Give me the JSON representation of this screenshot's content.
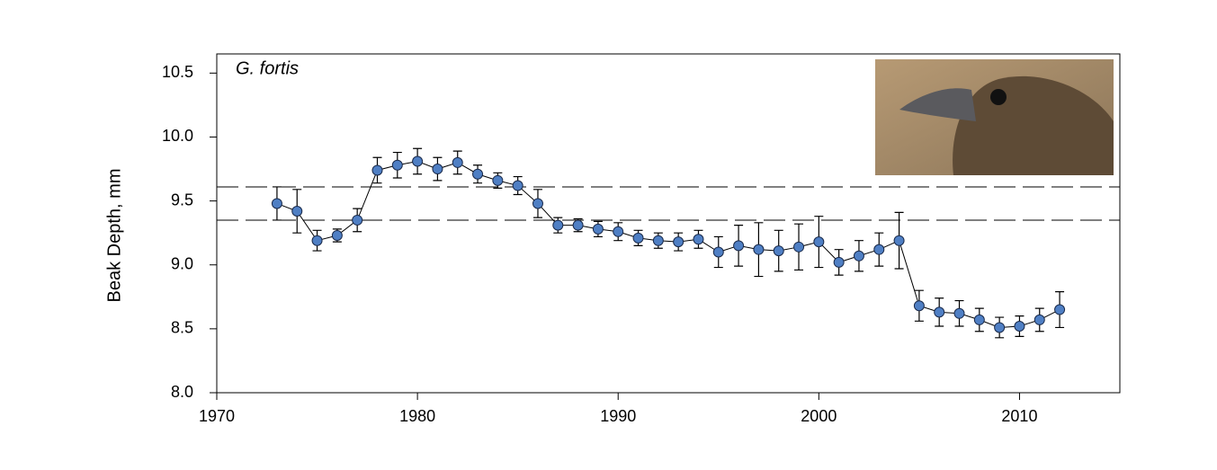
{
  "chart_data": {
    "type": "errorbar_line",
    "annotation": "G. fortis",
    "y_label": "Beak Depth, mm",
    "xlim": [
      1970,
      2015
    ],
    "xticks": [
      1970,
      1980,
      1990,
      2000,
      2010
    ],
    "ylim": [
      8.0,
      10.65
    ],
    "yticks": [
      {
        "value": 8.0,
        "label": "8.0"
      },
      8.5,
      {
        "value": 9.0,
        "label": "9.0"
      },
      9.5,
      {
        "value": 10.0,
        "label": "10.0"
      },
      10.5
    ],
    "reference_lines": [
      9.61,
      9.35
    ],
    "series": [
      {
        "color": "#4f7fc4",
        "x": [
          1973,
          1974,
          1975,
          1976,
          1977,
          1978,
          1979,
          1980,
          1981,
          1982,
          1983,
          1984,
          1985,
          1986,
          1987,
          1988,
          1989,
          1990,
          1991,
          1992,
          1993,
          1994,
          1995,
          1996,
          1997,
          1998,
          1999,
          2000,
          2001,
          2002,
          2003,
          2004,
          2005,
          2006,
          2007,
          2008,
          2009,
          2010,
          2011,
          2012
        ],
        "values": [
          9.48,
          9.42,
          9.19,
          9.23,
          9.35,
          9.74,
          9.78,
          9.81,
          9.75,
          9.8,
          9.71,
          9.66,
          9.62,
          9.48,
          9.31,
          9.31,
          9.28,
          9.26,
          9.21,
          9.19,
          9.18,
          9.2,
          9.1,
          9.15,
          9.12,
          9.11,
          9.14,
          9.18,
          9.02,
          9.07,
          9.12,
          9.19,
          8.68,
          8.63,
          8.62,
          8.57,
          8.51,
          8.52,
          8.57,
          8.65
        ],
        "errors": [
          0.13,
          0.17,
          0.08,
          0.05,
          0.09,
          0.1,
          0.1,
          0.1,
          0.09,
          0.09,
          0.07,
          0.06,
          0.07,
          0.11,
          0.06,
          0.05,
          0.06,
          0.07,
          0.06,
          0.06,
          0.07,
          0.07,
          0.12,
          0.16,
          0.21,
          0.16,
          0.18,
          0.2,
          0.1,
          0.12,
          0.13,
          0.22,
          0.12,
          0.11,
          0.1,
          0.09,
          0.08,
          0.08,
          0.09,
          0.14
        ]
      }
    ]
  }
}
